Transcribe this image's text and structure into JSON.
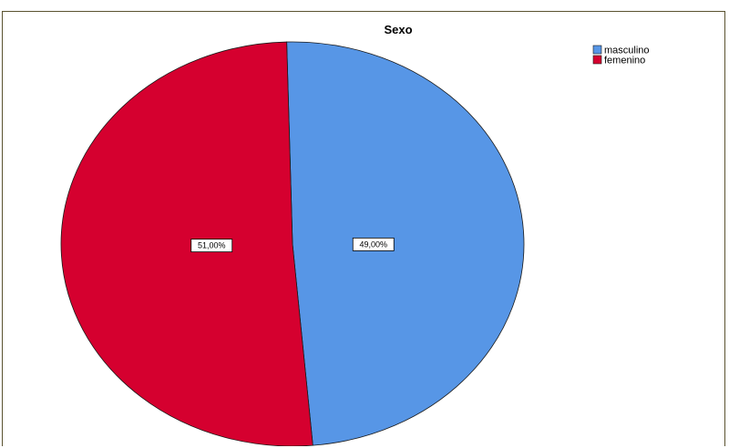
{
  "chart_data": {
    "type": "pie",
    "title": "Sexo",
    "legend_position": "top-right",
    "slices": [
      {
        "label": "masculino",
        "value": 49.0,
        "display": "49,00%",
        "color": "#5796e6"
      },
      {
        "label": "femenino",
        "value": 51.0,
        "display": "51,00%",
        "color": "#d5002f"
      }
    ]
  }
}
